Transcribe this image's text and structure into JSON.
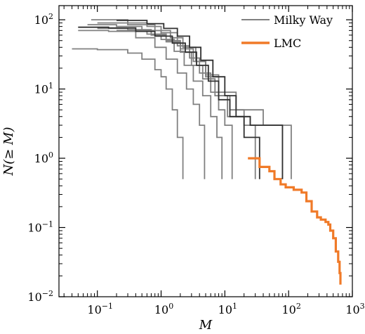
{
  "chart_data": {
    "type": "line",
    "xlabel": "M",
    "ylabel": "N(≥ M)",
    "x_scale": "log",
    "y_scale": "log",
    "xlim": [
      0.025,
      1000
    ],
    "ylim": [
      0.01,
      160
    ],
    "x_ticks": [
      {
        "value": 0.1,
        "base": "10",
        "exp": "−1"
      },
      {
        "value": 1,
        "base": "10",
        "exp": "0"
      },
      {
        "value": 10,
        "base": "10",
        "exp": "1"
      },
      {
        "value": 100,
        "base": "10",
        "exp": "2"
      },
      {
        "value": 1000,
        "base": "10",
        "exp": "3"
      }
    ],
    "y_ticks": [
      {
        "value": 0.01,
        "base": "10",
        "exp": "−2"
      },
      {
        "value": 0.1,
        "base": "10",
        "exp": "−1"
      },
      {
        "value": 1,
        "base": "10",
        "exp": "0"
      },
      {
        "value": 10,
        "base": "10",
        "exp": "1"
      },
      {
        "value": 100,
        "base": "10",
        "exp": "2"
      }
    ],
    "legend": {
      "position": "top-right",
      "entries": [
        {
          "label": "Milky Way",
          "color": "#808080"
        },
        {
          "label": "LMC",
          "color": "#f07a28"
        }
      ]
    },
    "series": [
      {
        "group": "Milky Way",
        "color": "#808080",
        "points": [
          [
            0.04,
            38
          ],
          [
            0.1,
            37
          ],
          [
            0.3,
            33
          ],
          [
            0.5,
            27
          ],
          [
            0.8,
            19
          ],
          [
            1.0,
            15
          ],
          [
            1.2,
            10
          ],
          [
            1.5,
            5
          ],
          [
            1.8,
            2
          ],
          [
            2.2,
            1
          ]
        ]
      },
      {
        "group": "Milky Way",
        "color": "#808080",
        "points": [
          [
            0.05,
            70
          ],
          [
            0.15,
            68
          ],
          [
            0.4,
            55
          ],
          [
            0.8,
            40
          ],
          [
            1.2,
            27
          ],
          [
            1.8,
            17
          ],
          [
            2.5,
            10
          ],
          [
            3.2,
            6
          ],
          [
            4.0,
            3
          ],
          [
            4.8,
            1
          ]
        ]
      },
      {
        "group": "Milky Way",
        "color": "#808080",
        "points": [
          [
            0.07,
            85
          ],
          [
            0.2,
            80
          ],
          [
            0.5,
            70
          ],
          [
            1.0,
            52
          ],
          [
            1.6,
            35
          ],
          [
            2.3,
            22
          ],
          [
            3.2,
            13
          ],
          [
            4.5,
            8
          ],
          [
            6.0,
            4
          ],
          [
            7.5,
            2
          ],
          [
            9,
            1
          ]
        ]
      },
      {
        "group": "Milky Way",
        "color": "#808080",
        "points": [
          [
            0.08,
            100
          ],
          [
            0.3,
            90
          ],
          [
            0.6,
            80
          ],
          [
            1.0,
            65
          ],
          [
            1.8,
            42
          ],
          [
            2.8,
            28
          ],
          [
            4.0,
            17
          ],
          [
            6.0,
            9
          ],
          [
            8.0,
            5
          ],
          [
            10,
            3
          ],
          [
            13,
            1
          ]
        ]
      },
      {
        "group": "Milky Way",
        "color": "#808080",
        "points": [
          [
            0.1,
            90
          ],
          [
            0.3,
            85
          ],
          [
            0.8,
            70
          ],
          [
            1.4,
            55
          ],
          [
            2.2,
            40
          ],
          [
            3.5,
            25
          ],
          [
            5.0,
            15
          ],
          [
            8.0,
            8
          ],
          [
            12,
            5
          ],
          [
            20,
            3
          ],
          [
            30,
            1
          ]
        ]
      },
      {
        "group": "Milky Way",
        "color": "#808080",
        "points": [
          [
            0.1,
            75
          ],
          [
            0.3,
            72
          ],
          [
            0.7,
            60
          ],
          [
            1.2,
            48
          ],
          [
            2.0,
            34
          ],
          [
            3.0,
            22
          ],
          [
            4.5,
            14
          ],
          [
            7.0,
            8
          ],
          [
            11,
            4
          ],
          [
            25,
            3
          ],
          [
            70,
            3
          ],
          [
            80,
            1
          ]
        ]
      },
      {
        "group": "Milky Way",
        "color": "#808080",
        "points": [
          [
            0.2,
            70
          ],
          [
            0.6,
            62
          ],
          [
            1.2,
            50
          ],
          [
            2.0,
            38
          ],
          [
            3.2,
            25
          ],
          [
            5.0,
            16
          ],
          [
            8.0,
            9
          ],
          [
            15,
            5
          ],
          [
            40,
            3
          ],
          [
            90,
            3
          ],
          [
            110,
            1
          ]
        ]
      },
      {
        "group": "Milky Way",
        "color": "#303030",
        "points": [
          [
            0.05,
            78
          ],
          [
            0.15,
            76
          ],
          [
            0.4,
            68
          ],
          [
            0.8,
            58
          ],
          [
            1.5,
            46
          ],
          [
            2.4,
            34
          ],
          [
            3.6,
            22
          ],
          [
            5.5,
            13
          ],
          [
            8.0,
            7
          ],
          [
            12,
            4
          ],
          [
            20,
            2
          ],
          [
            30,
            2
          ],
          [
            35,
            1
          ]
        ]
      },
      {
        "group": "Milky Way",
        "color": "#303030",
        "points": [
          [
            0.2,
            98
          ],
          [
            0.6,
            88
          ],
          [
            1.1,
            75
          ],
          [
            1.8,
            58
          ],
          [
            2.8,
            40
          ],
          [
            4.2,
            26
          ],
          [
            6.5,
            15
          ],
          [
            10,
            8
          ],
          [
            15,
            4
          ],
          [
            25,
            3
          ],
          [
            60,
            3
          ],
          [
            80,
            2
          ]
        ]
      },
      {
        "group": "LMC",
        "color": "#f07a28",
        "points": [
          [
            23,
            1.0
          ],
          [
            30,
            1.0
          ],
          [
            35,
            0.75
          ],
          [
            50,
            0.65
          ],
          [
            60,
            0.5
          ],
          [
            75,
            0.42
          ],
          [
            90,
            0.38
          ],
          [
            120,
            0.35
          ],
          [
            160,
            0.32
          ],
          [
            190,
            0.24
          ],
          [
            230,
            0.17
          ],
          [
            280,
            0.14
          ],
          [
            320,
            0.13
          ],
          [
            380,
            0.12
          ],
          [
            420,
            0.11
          ],
          [
            450,
            0.09
          ],
          [
            500,
            0.07
          ],
          [
            550,
            0.045
          ],
          [
            600,
            0.032
          ],
          [
            630,
            0.022
          ],
          [
            650,
            0.015
          ]
        ]
      }
    ]
  }
}
